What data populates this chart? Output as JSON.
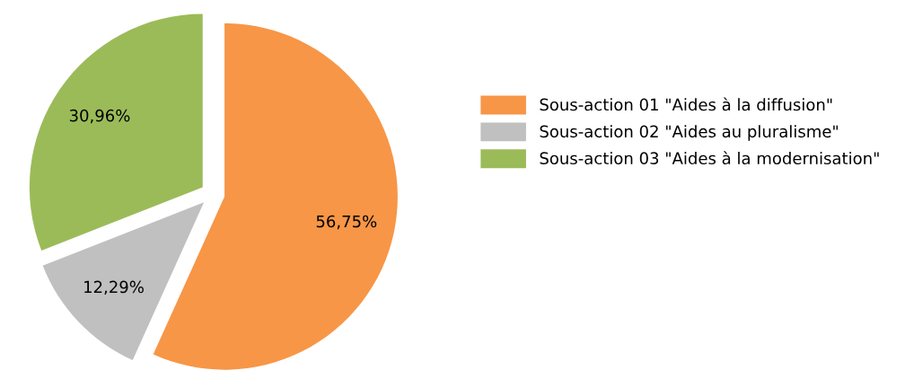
{
  "chart_data": {
    "type": "pie",
    "categories": [
      "Sous-action 01 \"Aides à la diffusion\"",
      "Sous-action 02 \"Aides au pluralisme\"",
      "Sous-action 03 \"Aides à la modernisation\""
    ],
    "values": [
      56.75,
      12.29,
      30.96
    ],
    "colors": [
      "#f79646",
      "#c0c0c0",
      "#9bbb59"
    ],
    "value_labels": [
      "56,75%",
      "12,29%",
      "30,96%"
    ],
    "legend": "right"
  }
}
